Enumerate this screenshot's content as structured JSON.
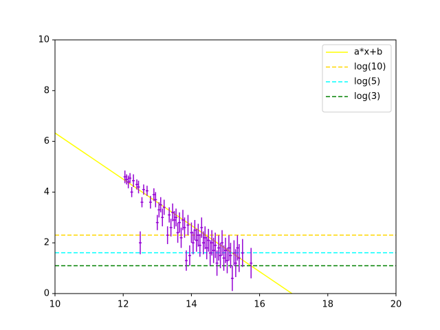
{
  "chart_data": {
    "type": "errorbar",
    "xlim": [
      10,
      20
    ],
    "xticks": [
      10,
      12,
      14,
      16,
      18,
      20
    ],
    "ylim": [
      0,
      10
    ],
    "yticks": [
      0,
      2,
      4,
      6,
      8,
      10
    ],
    "legend": "upper right",
    "series": [
      {
        "name": "a*x+b",
        "color": "#ffff00",
        "type": "line",
        "dashed": false,
        "x": [
          10,
          16.95
        ],
        "values": [
          6.33,
          0
        ]
      },
      {
        "name": "log(10)",
        "color": "#ffd700",
        "type": "hline",
        "dashed": true,
        "values": [
          2.303
        ]
      },
      {
        "name": "log(5)",
        "color": "#00ffff",
        "type": "hline",
        "dashed": true,
        "values": [
          1.609
        ]
      },
      {
        "name": "log(3)",
        "color": "#008000",
        "type": "hline",
        "dashed": true,
        "values": [
          1.099
        ]
      },
      {
        "type": "errorbar",
        "color": "#9400d3",
        "xerr": 0.04,
        "x": [
          12.05,
          12.1,
          12.15,
          12.2,
          12.25,
          12.3,
          12.4,
          12.45,
          12.5,
          12.55,
          12.6,
          12.7,
          12.8,
          12.9,
          12.95,
          13.0,
          13.05,
          13.1,
          13.15,
          13.2,
          13.3,
          13.35,
          13.4,
          13.45,
          13.5,
          13.55,
          13.6,
          13.65,
          13.7,
          13.75,
          13.8,
          13.85,
          13.9,
          13.95,
          14.0,
          14.05,
          14.1,
          14.15,
          14.2,
          14.25,
          14.3,
          14.35,
          14.4,
          14.45,
          14.5,
          14.55,
          14.6,
          14.65,
          14.7,
          14.75,
          14.8,
          14.85,
          14.9,
          14.95,
          15.0,
          15.05,
          15.1,
          15.15,
          15.2,
          15.25,
          15.3,
          15.35,
          15.4,
          15.5,
          15.75
        ],
        "values": [
          4.6,
          4.5,
          4.4,
          4.55,
          4.0,
          4.45,
          4.3,
          4.2,
          2.0,
          3.6,
          4.1,
          4.05,
          3.6,
          3.9,
          3.7,
          2.8,
          3.3,
          3.5,
          3.0,
          3.4,
          2.3,
          3.1,
          2.6,
          3.2,
          2.9,
          3.0,
          2.4,
          2.8,
          2.2,
          2.9,
          2.6,
          1.3,
          2.7,
          1.5,
          2.4,
          2.0,
          2.5,
          2.1,
          2.3,
          1.9,
          2.6,
          2.0,
          2.2,
          1.8,
          2.1,
          1.6,
          2.0,
          1.7,
          1.9,
          1.2,
          1.8,
          1.5,
          2.0,
          1.4,
          1.7,
          1.3,
          1.8,
          1.5,
          0.6,
          1.6,
          1.2,
          1.8,
          1.4,
          1.6,
          1.2
        ],
        "yerr": [
          0.25,
          0.2,
          0.25,
          0.2,
          0.2,
          0.25,
          0.2,
          0.25,
          0.45,
          0.2,
          0.2,
          0.2,
          0.25,
          0.25,
          0.3,
          0.3,
          0.3,
          0.3,
          0.35,
          0.3,
          0.35,
          0.3,
          0.35,
          0.35,
          0.35,
          0.35,
          0.4,
          0.4,
          0.4,
          0.4,
          0.4,
          0.4,
          0.4,
          0.4,
          0.4,
          0.45,
          0.4,
          0.45,
          0.45,
          0.45,
          0.4,
          0.45,
          0.45,
          0.45,
          0.45,
          0.5,
          0.5,
          0.5,
          0.5,
          0.5,
          0.5,
          0.5,
          0.5,
          0.5,
          0.5,
          0.5,
          0.5,
          0.5,
          0.5,
          0.5,
          0.55,
          0.5,
          0.55,
          0.55,
          0.6
        ]
      }
    ]
  }
}
